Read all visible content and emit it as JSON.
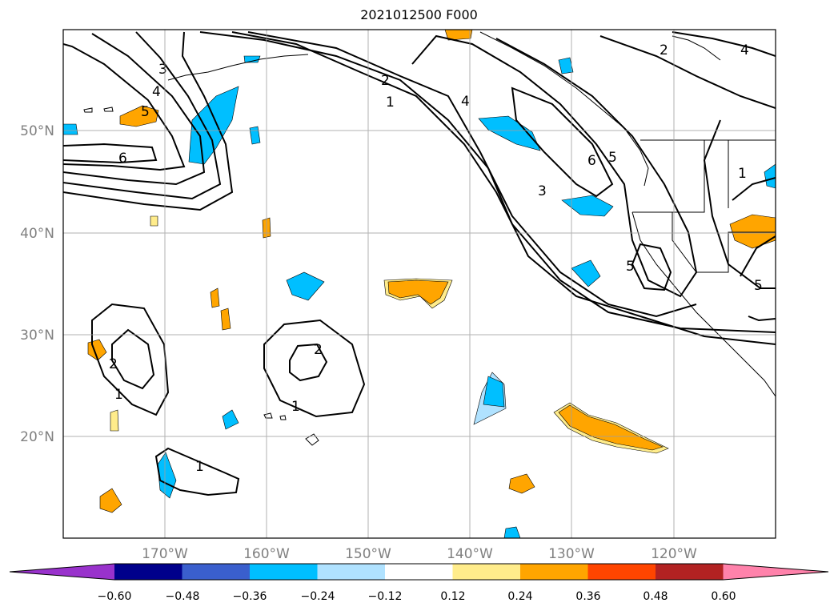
{
  "title": "2021012500 F000",
  "lat_labels": [
    "50°N",
    "40°N",
    "30°N",
    "20°N"
  ],
  "lon_labels": [
    "170°W",
    "160°W",
    "150°W",
    "140°W",
    "130°W",
    "120°W"
  ],
  "colorbar": {
    "ticks": [
      "−0.60",
      "−0.48",
      "−0.36",
      "−0.24",
      "−0.12",
      "0.12",
      "0.24",
      "0.36",
      "0.48",
      "0.60"
    ],
    "colors": [
      "#9932cc",
      "#00008b",
      "#3a5fcd",
      "#00bfff",
      "#b0e2ff",
      "#ffffff",
      "#ffec8b",
      "#ffa500",
      "#ff4500",
      "#b22222",
      "#ff82ab"
    ]
  },
  "contour_labels": [
    "6",
    "5",
    "4",
    "3",
    "2",
    "1",
    "2",
    "1",
    "2",
    "1",
    "4",
    "3",
    "6",
    "5",
    "5",
    "2",
    "4",
    "1",
    "5",
    "1"
  ]
}
